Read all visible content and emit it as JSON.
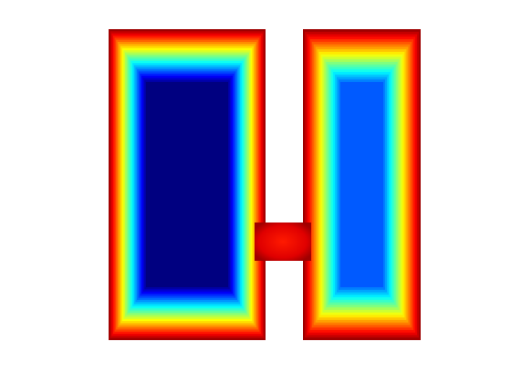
{
  "figure": {
    "description_colormap": "jet",
    "background": "#ffffff",
    "colormap_stops": [
      "#00007f",
      "#0000ff",
      "#00ffff",
      "#ffff00",
      "#ff0000",
      "#7f0000"
    ],
    "regions": [
      {
        "name": "left-rectangle",
        "peak_level": 0.0
      },
      {
        "name": "right-rectangle",
        "peak_level": 0.22
      },
      {
        "name": "connecting-bridge",
        "peak_level": 0.9
      }
    ]
  }
}
